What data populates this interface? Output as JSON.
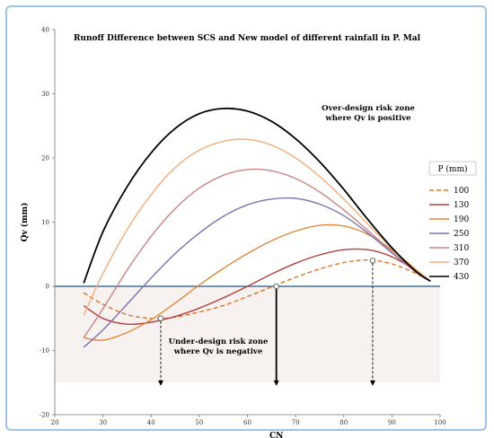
{
  "chart_data": {
    "type": "line",
    "title": "Runoff Difference between SCS and New model of different rainfall in P. Mal",
    "xlabel": "CN",
    "ylabel": "Qv (mm)",
    "xlim": [
      20,
      100
    ],
    "ylim": [
      -20,
      40
    ],
    "x_ticks": [
      20,
      30,
      40,
      50,
      60,
      70,
      80,
      90,
      100
    ],
    "y_ticks": [
      -20,
      -10,
      0,
      10,
      20,
      30,
      40
    ],
    "legend_title": "P (mm)",
    "legend_placement": "right",
    "grid": false,
    "annotations": {
      "over": [
        "Over-design risk zone",
        "where Qv is positive"
      ],
      "under": [
        "Under-design risk zone",
        "where Qv is negative"
      ]
    },
    "zero_crossings": [
      {
        "x": 42,
        "y": -5,
        "style": "dashed"
      },
      {
        "x": 66,
        "y": 0,
        "style": "solid"
      },
      {
        "x": 86,
        "y": 4,
        "style": "dashed"
      }
    ],
    "series": [
      {
        "name": "100",
        "color": "#d9772f",
        "dash": true,
        "points": [
          [
            26,
            -1
          ],
          [
            30,
            -2.8
          ],
          [
            35,
            -4.4
          ],
          [
            40,
            -5
          ],
          [
            45,
            -4.8
          ],
          [
            50,
            -4
          ],
          [
            55,
            -3
          ],
          [
            60,
            -1.6
          ],
          [
            65,
            -0.1
          ],
          [
            70,
            1.4
          ],
          [
            75,
            2.7
          ],
          [
            80,
            3.7
          ],
          [
            85,
            4.1
          ],
          [
            90,
            3.5
          ],
          [
            95,
            2
          ],
          [
            98,
            0.8
          ]
        ]
      },
      {
        "name": "130",
        "color": "#b0413e",
        "dash": false,
        "points": [
          [
            26,
            -3
          ],
          [
            30,
            -5
          ],
          [
            35,
            -5.9
          ],
          [
            40,
            -5.6
          ],
          [
            45,
            -4.7
          ],
          [
            50,
            -3.4
          ],
          [
            55,
            -1.8
          ],
          [
            60,
            0
          ],
          [
            65,
            1.9
          ],
          [
            70,
            3.6
          ],
          [
            75,
            4.9
          ],
          [
            80,
            5.7
          ],
          [
            85,
            5.7
          ],
          [
            90,
            4.6
          ],
          [
            95,
            2.4
          ],
          [
            98,
            0.8
          ]
        ]
      },
      {
        "name": "190",
        "color": "#e0893a",
        "dash": false,
        "points": [
          [
            26,
            -8
          ],
          [
            30,
            -8.4
          ],
          [
            35,
            -7.2
          ],
          [
            40,
            -5.2
          ],
          [
            45,
            -2.6
          ],
          [
            50,
            0.2
          ],
          [
            55,
            2.8
          ],
          [
            60,
            5.1
          ],
          [
            65,
            7.1
          ],
          [
            70,
            8.6
          ],
          [
            75,
            9.5
          ],
          [
            80,
            9.4
          ],
          [
            85,
            8.1
          ],
          [
            90,
            5.7
          ],
          [
            95,
            2.6
          ],
          [
            98,
            0.8
          ]
        ]
      },
      {
        "name": "250",
        "color": "#7b73b0",
        "dash": false,
        "points": [
          [
            26,
            -9.5
          ],
          [
            30,
            -6.8
          ],
          [
            35,
            -2.8
          ],
          [
            40,
            1.3
          ],
          [
            45,
            5.1
          ],
          [
            50,
            8.3
          ],
          [
            55,
            10.9
          ],
          [
            60,
            12.7
          ],
          [
            65,
            13.6
          ],
          [
            70,
            13.7
          ],
          [
            75,
            12.8
          ],
          [
            80,
            11
          ],
          [
            85,
            8.3
          ],
          [
            90,
            5.2
          ],
          [
            95,
            2.2
          ],
          [
            98,
            0.8
          ]
        ]
      },
      {
        "name": "310",
        "color": "#c98582",
        "dash": false,
        "points": [
          [
            26,
            -8
          ],
          [
            30,
            -3.5
          ],
          [
            35,
            2.5
          ],
          [
            40,
            7.8
          ],
          [
            45,
            12.1
          ],
          [
            50,
            15.3
          ],
          [
            55,
            17.3
          ],
          [
            60,
            18.2
          ],
          [
            65,
            18
          ],
          [
            70,
            16.8
          ],
          [
            75,
            14.7
          ],
          [
            80,
            11.9
          ],
          [
            85,
            8.7
          ],
          [
            90,
            5.4
          ],
          [
            95,
            2.2
          ],
          [
            98,
            0.8
          ]
        ]
      },
      {
        "name": "370",
        "color": "#f2ae7c",
        "dash": false,
        "points": [
          [
            26,
            -4.5
          ],
          [
            30,
            2
          ],
          [
            35,
            8.8
          ],
          [
            40,
            14.3
          ],
          [
            45,
            18.5
          ],
          [
            50,
            21.2
          ],
          [
            55,
            22.6
          ],
          [
            60,
            22.9
          ],
          [
            65,
            22
          ],
          [
            70,
            20
          ],
          [
            75,
            17.1
          ],
          [
            80,
            13.6
          ],
          [
            85,
            9.7
          ],
          [
            90,
            5.9
          ],
          [
            95,
            2.3
          ],
          [
            98,
            0.8
          ]
        ]
      },
      {
        "name": "430",
        "color": "#000000",
        "dash": false,
        "points": [
          [
            26,
            0.5
          ],
          [
            30,
            8.5
          ],
          [
            35,
            15.5
          ],
          [
            40,
            20.8
          ],
          [
            45,
            24.6
          ],
          [
            50,
            26.9
          ],
          [
            55,
            27.7
          ],
          [
            60,
            27.3
          ],
          [
            65,
            25.7
          ],
          [
            70,
            23
          ],
          [
            75,
            19.4
          ],
          [
            80,
            15.1
          ],
          [
            85,
            10.4
          ],
          [
            90,
            6
          ],
          [
            95,
            2.3
          ],
          [
            98,
            0.8
          ]
        ]
      }
    ]
  }
}
